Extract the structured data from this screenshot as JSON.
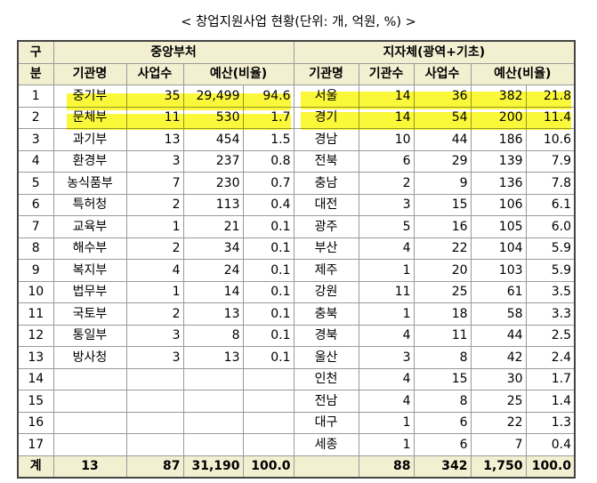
{
  "caption": "< 창업지원사업 현황(단위: 개, 억원, %) >",
  "headers": {
    "gu": "구",
    "bun": "분",
    "central": "중앙부처",
    "local": "지자체(광역+기초)",
    "agency": "기관명",
    "projects": "사업수",
    "budget": "예산(비율)",
    "agency_count": "기관수"
  },
  "rows": [
    {
      "no": "1",
      "c_name": "중기부",
      "c_proj": "35",
      "c_budget": "29,499",
      "c_ratio": "94.6",
      "l_name": "서울",
      "l_count": "14",
      "l_proj": "36",
      "l_budget": "382",
      "l_ratio": "21.8"
    },
    {
      "no": "2",
      "c_name": "문체부",
      "c_proj": "11",
      "c_budget": "530",
      "c_ratio": "1.7",
      "l_name": "경기",
      "l_count": "14",
      "l_proj": "54",
      "l_budget": "200",
      "l_ratio": "11.4"
    },
    {
      "no": "3",
      "c_name": "과기부",
      "c_proj": "13",
      "c_budget": "454",
      "c_ratio": "1.5",
      "l_name": "경남",
      "l_count": "10",
      "l_proj": "44",
      "l_budget": "186",
      "l_ratio": "10.6"
    },
    {
      "no": "4",
      "c_name": "환경부",
      "c_proj": "3",
      "c_budget": "237",
      "c_ratio": "0.8",
      "l_name": "전북",
      "l_count": "6",
      "l_proj": "29",
      "l_budget": "139",
      "l_ratio": "7.9"
    },
    {
      "no": "5",
      "c_name": "농식품부",
      "c_proj": "7",
      "c_budget": "230",
      "c_ratio": "0.7",
      "l_name": "충남",
      "l_count": "2",
      "l_proj": "9",
      "l_budget": "136",
      "l_ratio": "7.8"
    },
    {
      "no": "6",
      "c_name": "특허청",
      "c_proj": "2",
      "c_budget": "113",
      "c_ratio": "0.4",
      "l_name": "대전",
      "l_count": "3",
      "l_proj": "15",
      "l_budget": "106",
      "l_ratio": "6.1"
    },
    {
      "no": "7",
      "c_name": "교육부",
      "c_proj": "1",
      "c_budget": "21",
      "c_ratio": "0.1",
      "l_name": "광주",
      "l_count": "5",
      "l_proj": "16",
      "l_budget": "105",
      "l_ratio": "6.0"
    },
    {
      "no": "8",
      "c_name": "해수부",
      "c_proj": "2",
      "c_budget": "34",
      "c_ratio": "0.1",
      "l_name": "부산",
      "l_count": "4",
      "l_proj": "22",
      "l_budget": "104",
      "l_ratio": "5.9"
    },
    {
      "no": "9",
      "c_name": "복지부",
      "c_proj": "4",
      "c_budget": "24",
      "c_ratio": "0.1",
      "l_name": "제주",
      "l_count": "1",
      "l_proj": "20",
      "l_budget": "103",
      "l_ratio": "5.9"
    },
    {
      "no": "10",
      "c_name": "법무부",
      "c_proj": "1",
      "c_budget": "14",
      "c_ratio": "0.1",
      "l_name": "강원",
      "l_count": "11",
      "l_proj": "25",
      "l_budget": "61",
      "l_ratio": "3.5"
    },
    {
      "no": "11",
      "c_name": "국토부",
      "c_proj": "2",
      "c_budget": "13",
      "c_ratio": "0.1",
      "l_name": "충북",
      "l_count": "1",
      "l_proj": "18",
      "l_budget": "58",
      "l_ratio": "3.3"
    },
    {
      "no": "12",
      "c_name": "통일부",
      "c_proj": "3",
      "c_budget": "8",
      "c_ratio": "0.1",
      "l_name": "경북",
      "l_count": "4",
      "l_proj": "11",
      "l_budget": "44",
      "l_ratio": "2.5"
    },
    {
      "no": "13",
      "c_name": "방사청",
      "c_proj": "3",
      "c_budget": "13",
      "c_ratio": "0.1",
      "l_name": "울산",
      "l_count": "3",
      "l_proj": "8",
      "l_budget": "42",
      "l_ratio": "2.4"
    },
    {
      "no": "14",
      "c_name": "",
      "c_proj": "",
      "c_budget": "",
      "c_ratio": "",
      "l_name": "인천",
      "l_count": "4",
      "l_proj": "15",
      "l_budget": "30",
      "l_ratio": "1.7"
    },
    {
      "no": "15",
      "c_name": "",
      "c_proj": "",
      "c_budget": "",
      "c_ratio": "",
      "l_name": "전남",
      "l_count": "4",
      "l_proj": "8",
      "l_budget": "25",
      "l_ratio": "1.4"
    },
    {
      "no": "16",
      "c_name": "",
      "c_proj": "",
      "c_budget": "",
      "c_ratio": "",
      "l_name": "대구",
      "l_count": "1",
      "l_proj": "6",
      "l_budget": "22",
      "l_ratio": "1.3"
    },
    {
      "no": "17",
      "c_name": "",
      "c_proj": "",
      "c_budget": "",
      "c_ratio": "",
      "l_name": "세종",
      "l_count": "1",
      "l_proj": "6",
      "l_budget": "7",
      "l_ratio": "0.4"
    }
  ],
  "total": {
    "label": "계",
    "c_count": "13",
    "c_proj": "87",
    "c_budget": "31,190",
    "c_ratio": "100.0",
    "l_name": "",
    "l_count": "88",
    "l_proj": "342",
    "l_budget": "1,750",
    "l_ratio": "100.0"
  },
  "highlight_color": "#fbf716"
}
